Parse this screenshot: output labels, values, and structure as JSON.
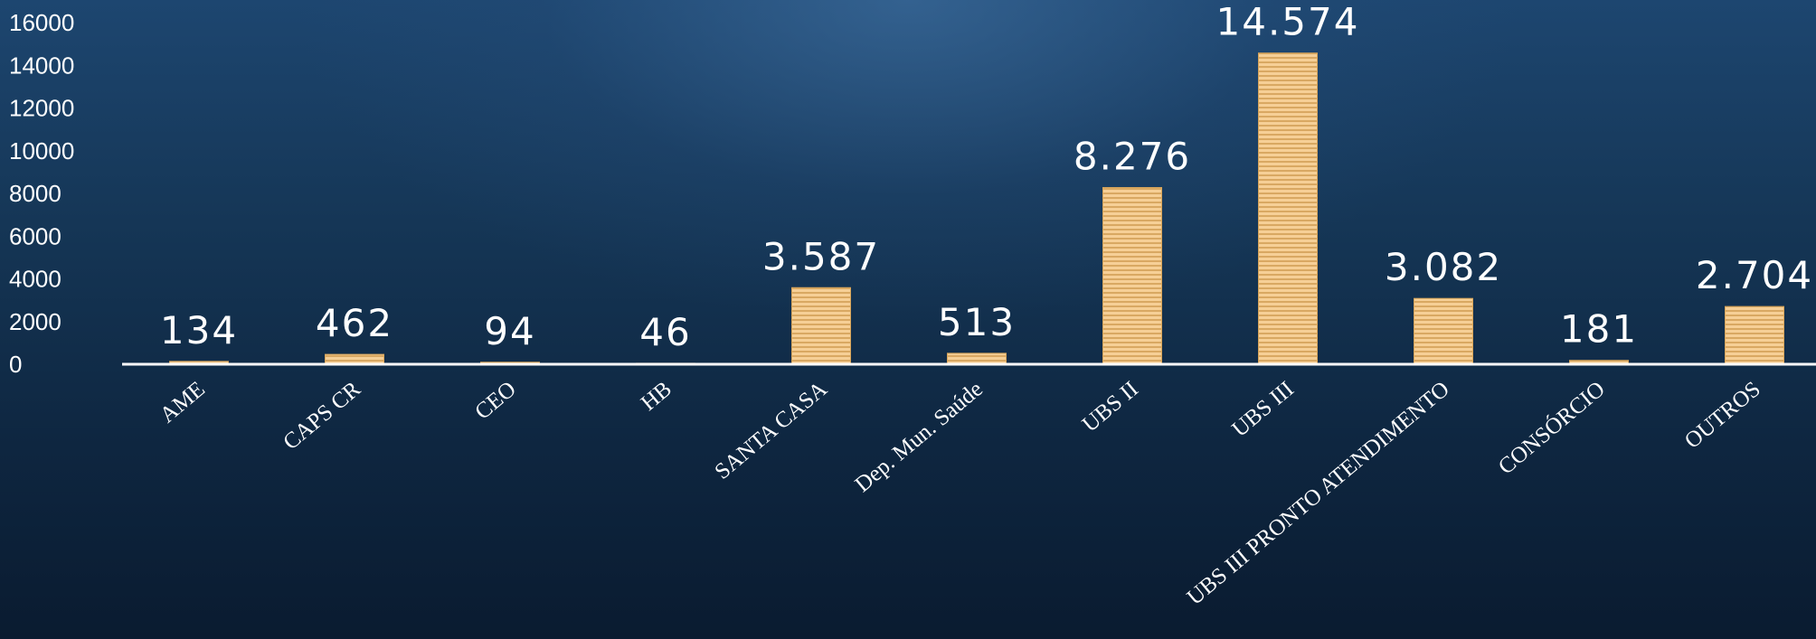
{
  "chart_data": {
    "type": "bar",
    "categories": [
      "AME",
      "CAPS CR",
      "CEO",
      "HB",
      "SANTA CASA",
      "Dep. Mun. Saúde",
      "UBS II",
      "UBS III",
      "UBS III PRONTO ATENDIMENTO",
      "CONSÓRCIO",
      "OUTROS"
    ],
    "values": [
      134,
      462,
      94,
      46,
      3587,
      513,
      8276,
      14574,
      3082,
      181,
      2704
    ],
    "data_labels": [
      "134",
      "462",
      "94",
      "46",
      "3.587",
      "513",
      "8.276",
      "14.574",
      "3.082",
      "181",
      "2.704"
    ],
    "y_ticks": [
      0,
      2000,
      4000,
      6000,
      8000,
      10000,
      12000,
      14000,
      16000
    ],
    "ylim": [
      0,
      16000
    ],
    "title": "",
    "xlabel": "",
    "ylabel": "",
    "grid": false,
    "legend": "none",
    "colors": {
      "bar_fill": "#f4c98a",
      "bar_stripe": "#d8a55a",
      "axis": "#ffffff",
      "text": "#ffffff"
    }
  }
}
